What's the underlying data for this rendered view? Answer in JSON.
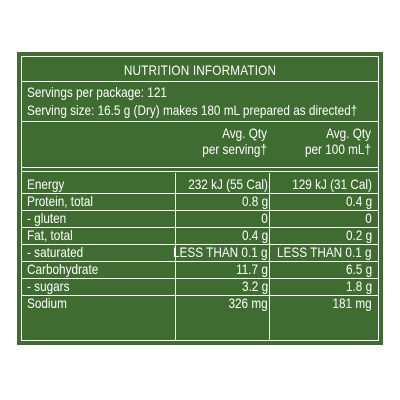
{
  "panel": {
    "title": "NUTRITION INFORMATION",
    "servings_per_package": "Servings per package: 121",
    "serving_size": "Serving size:  16.5 g (Dry) makes 180 mL prepared as directed†",
    "columns": [
      {
        "line1": "Avg. Qty",
        "line2": "per serving†"
      },
      {
        "line1": "Avg. Qty",
        "line2": "per 100 mL†"
      }
    ],
    "rows": [
      {
        "label": "Energy",
        "per_serving": "232 kJ (55 Cal)",
        "per_100ml": "129 kJ (31 Cal)"
      },
      {
        "label": "Protein, total",
        "per_serving": "0.8 g",
        "per_100ml": "0.4 g"
      },
      {
        "label": "- gluten",
        "per_serving": "0",
        "per_100ml": "0"
      },
      {
        "label": "Fat, total",
        "per_serving": "0.4 g",
        "per_100ml": "0.2 g"
      },
      {
        "label": "- saturated",
        "per_serving": "LESS THAN 0.1 g",
        "per_100ml": "LESS THAN 0.1 g"
      },
      {
        "label": "Carbohydrate",
        "per_serving": "11.7 g",
        "per_100ml": "6.5 g"
      },
      {
        "label": "- sugars",
        "per_serving": "3.2 g",
        "per_100ml": "1.8 g"
      },
      {
        "label": "Sodium",
        "per_serving": "326 mg",
        "per_100ml": "181 mg"
      }
    ],
    "colors": {
      "background": "#3f6c30",
      "text": "#ffffff"
    }
  }
}
